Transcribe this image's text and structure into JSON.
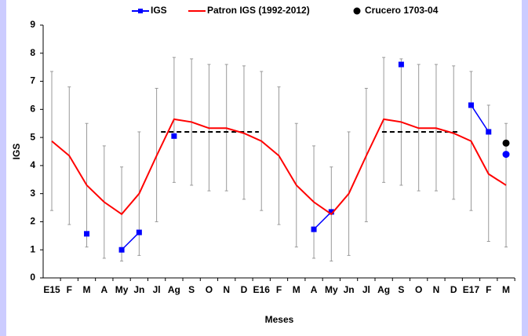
{
  "chart_data": {
    "type": "line",
    "ylabel": "IGS",
    "xlabel": "Meses",
    "categories": [
      "E15",
      "F",
      "M",
      "A",
      "My",
      "Jn",
      "Jl",
      "Ag",
      "S",
      "O",
      "N",
      "D",
      "E16",
      "F",
      "M",
      "A",
      "My",
      "Jn",
      "Jl",
      "Ag",
      "S",
      "O",
      "N",
      "D",
      "E17",
      "F",
      "M"
    ],
    "series": [
      {
        "name": "IGS",
        "color": "#0000ff",
        "marker": "square",
        "values": [
          null,
          null,
          1.57,
          null,
          1.0,
          1.62,
          null,
          5.05,
          null,
          null,
          null,
          null,
          null,
          null,
          null,
          1.73,
          2.35,
          null,
          null,
          null,
          7.6,
          null,
          null,
          null,
          6.15,
          5.2,
          null
        ]
      },
      {
        "name": "Patron IGS (1992-2012)",
        "color": "#ff0000",
        "marker": "none",
        "values": [
          4.87,
          4.35,
          3.3,
          2.7,
          2.27,
          3.0,
          4.35,
          5.65,
          5.55,
          5.33,
          5.33,
          5.15,
          4.87,
          4.35,
          3.3,
          2.7,
          2.27,
          3.0,
          4.35,
          5.65,
          5.55,
          5.33,
          5.33,
          5.15,
          4.87,
          3.7,
          3.3
        ],
        "low": [
          2.4,
          1.9,
          1.1,
          0.7,
          0.6,
          0.8,
          2.0,
          3.4,
          3.3,
          3.1,
          3.1,
          2.8,
          2.4,
          1.9,
          1.1,
          0.7,
          0.6,
          0.8,
          2.0,
          3.4,
          3.3,
          3.1,
          3.1,
          2.8,
          2.4,
          1.3,
          1.1
        ],
        "high": [
          7.35,
          6.8,
          5.5,
          4.7,
          3.95,
          5.2,
          6.75,
          7.85,
          7.8,
          7.6,
          7.6,
          7.55,
          7.35,
          6.8,
          5.5,
          4.7,
          3.95,
          5.2,
          6.75,
          7.85,
          7.8,
          7.6,
          7.6,
          7.55,
          7.35,
          6.15,
          5.5
        ]
      },
      {
        "name": "Crucero 1703-04",
        "color": "#000000",
        "marker": "circle",
        "values": [
          null,
          null,
          null,
          null,
          null,
          null,
          null,
          null,
          null,
          null,
          null,
          null,
          null,
          null,
          null,
          null,
          null,
          null,
          null,
          null,
          null,
          null,
          null,
          null,
          null,
          null,
          4.8
        ]
      },
      {
        "color": "#0000ff",
        "marker": "circle",
        "legend": false,
        "values": [
          null,
          null,
          null,
          null,
          null,
          null,
          null,
          null,
          null,
          null,
          null,
          null,
          null,
          null,
          null,
          null,
          null,
          null,
          null,
          null,
          null,
          null,
          null,
          null,
          null,
          null,
          4.4
        ]
      }
    ],
    "reference_value": 5.2,
    "ylim": [
      0,
      9
    ],
    "yticks": [
      0,
      1,
      2,
      3,
      4,
      5,
      6,
      7,
      8,
      9
    ]
  }
}
